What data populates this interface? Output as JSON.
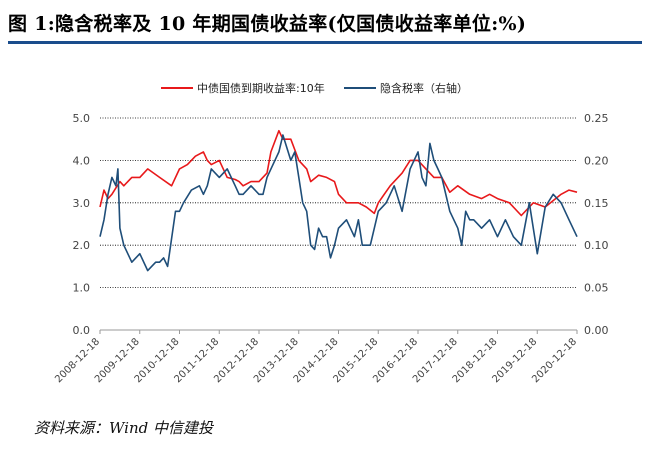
{
  "figure": {
    "title": "图 1:隐含税率及 10 年期国债收益率(仅国债收益率单位:%)",
    "source": "资料来源：Wind 中信建投"
  },
  "colors": {
    "yield": "#e8191b",
    "tax": "#1f4e79",
    "grid": "#000000",
    "axis": "#999999",
    "text": "#444444"
  },
  "chart_data": {
    "type": "line",
    "title": "隐含税率及 10 年期国债收益率",
    "xlabel": "",
    "ylabel": "",
    "categories": [
      "2008-12-18",
      "2009-12-18",
      "2010-12-18",
      "2011-12-18",
      "2012-12-18",
      "2013-12-18",
      "2014-12-18",
      "2015-12-18",
      "2016-12-18",
      "2017-12-18",
      "2018-12-18",
      "2019-12-18",
      "2020-12-18"
    ],
    "y_left": {
      "range": [
        0,
        5
      ],
      "ticks": [
        "0.0",
        "1.0",
        "2.0",
        "3.0",
        "4.0",
        "5.0"
      ]
    },
    "y_right": {
      "range": [
        0,
        0.25
      ],
      "ticks": [
        "0.00",
        "0.05",
        "0.10",
        "0.15",
        "0.20",
        "0.25"
      ],
      "label_note": "右轴"
    },
    "legend_position": "top",
    "series": [
      {
        "name": "中债国债到期收益率:10年",
        "axis": "left",
        "x": [
          0,
          0.1,
          0.2,
          0.3,
          0.5,
          0.6,
          0.8,
          1.0,
          1.2,
          1.5,
          1.8,
          2.0,
          2.2,
          2.4,
          2.6,
          2.7,
          2.8,
          3.0,
          3.2,
          3.4,
          3.5,
          3.6,
          3.8,
          4.0,
          4.2,
          4.3,
          4.5,
          4.6,
          4.8,
          5.0,
          5.2,
          5.3,
          5.5,
          5.7,
          5.9,
          6.0,
          6.2,
          6.5,
          6.7,
          6.9,
          7.0,
          7.3,
          7.6,
          7.8,
          8.0,
          8.2,
          8.4,
          8.6,
          8.8,
          9.0,
          9.3,
          9.6,
          9.8,
          10.0,
          10.3,
          10.6,
          10.9,
          11.2,
          11.6,
          11.8,
          12.0
        ],
        "y": [
          2.9,
          3.3,
          3.1,
          3.2,
          3.5,
          3.4,
          3.6,
          3.6,
          3.8,
          3.6,
          3.4,
          3.8,
          3.9,
          4.1,
          4.2,
          4.0,
          3.9,
          4.0,
          3.6,
          3.55,
          3.5,
          3.4,
          3.5,
          3.5,
          3.7,
          4.2,
          4.7,
          4.5,
          4.5,
          4.0,
          3.8,
          3.5,
          3.65,
          3.6,
          3.5,
          3.2,
          3.0,
          3.0,
          2.9,
          2.75,
          3.0,
          3.4,
          3.7,
          4.0,
          4.0,
          3.8,
          3.6,
          3.6,
          3.25,
          3.4,
          3.2,
          3.1,
          3.2,
          3.1,
          3.0,
          2.7,
          3.0,
          2.9,
          3.2,
          3.3,
          3.25
        ]
      },
      {
        "name": "隐含税率（右轴）",
        "axis": "right",
        "x": [
          0,
          0.1,
          0.2,
          0.3,
          0.4,
          0.45,
          0.5,
          0.6,
          0.7,
          0.8,
          1.0,
          1.2,
          1.4,
          1.5,
          1.6,
          1.7,
          1.9,
          2.0,
          2.1,
          2.3,
          2.5,
          2.6,
          2.7,
          2.8,
          3.0,
          3.2,
          3.4,
          3.5,
          3.6,
          3.8,
          4.0,
          4.1,
          4.2,
          4.4,
          4.5,
          4.6,
          4.8,
          4.9,
          5.0,
          5.1,
          5.2,
          5.3,
          5.4,
          5.5,
          5.6,
          5.7,
          5.8,
          5.9,
          6.0,
          6.2,
          6.4,
          6.5,
          6.6,
          6.8,
          7.0,
          7.2,
          7.4,
          7.6,
          7.8,
          8.0,
          8.1,
          8.2,
          8.3,
          8.4,
          8.5,
          8.6,
          8.8,
          9.0,
          9.1,
          9.2,
          9.3,
          9.4,
          9.6,
          9.8,
          10.0,
          10.2,
          10.4,
          10.6,
          10.8,
          10.9,
          11.0,
          11.2,
          11.4,
          11.6,
          11.8,
          12.0
        ],
        "y": [
          0.11,
          0.13,
          0.16,
          0.18,
          0.17,
          0.19,
          0.12,
          0.1,
          0.09,
          0.08,
          0.09,
          0.07,
          0.08,
          0.08,
          0.085,
          0.075,
          0.14,
          0.14,
          0.15,
          0.165,
          0.17,
          0.16,
          0.17,
          0.19,
          0.18,
          0.19,
          0.17,
          0.16,
          0.16,
          0.17,
          0.16,
          0.16,
          0.18,
          0.2,
          0.21,
          0.23,
          0.2,
          0.21,
          0.18,
          0.15,
          0.14,
          0.1,
          0.095,
          0.12,
          0.11,
          0.11,
          0.085,
          0.1,
          0.12,
          0.13,
          0.11,
          0.13,
          0.1,
          0.1,
          0.14,
          0.15,
          0.17,
          0.14,
          0.19,
          0.21,
          0.18,
          0.17,
          0.22,
          0.2,
          0.19,
          0.18,
          0.14,
          0.12,
          0.1,
          0.14,
          0.13,
          0.13,
          0.12,
          0.13,
          0.11,
          0.13,
          0.11,
          0.1,
          0.15,
          0.12,
          0.09,
          0.145,
          0.16,
          0.15,
          0.13,
          0.11
        ]
      }
    ]
  }
}
